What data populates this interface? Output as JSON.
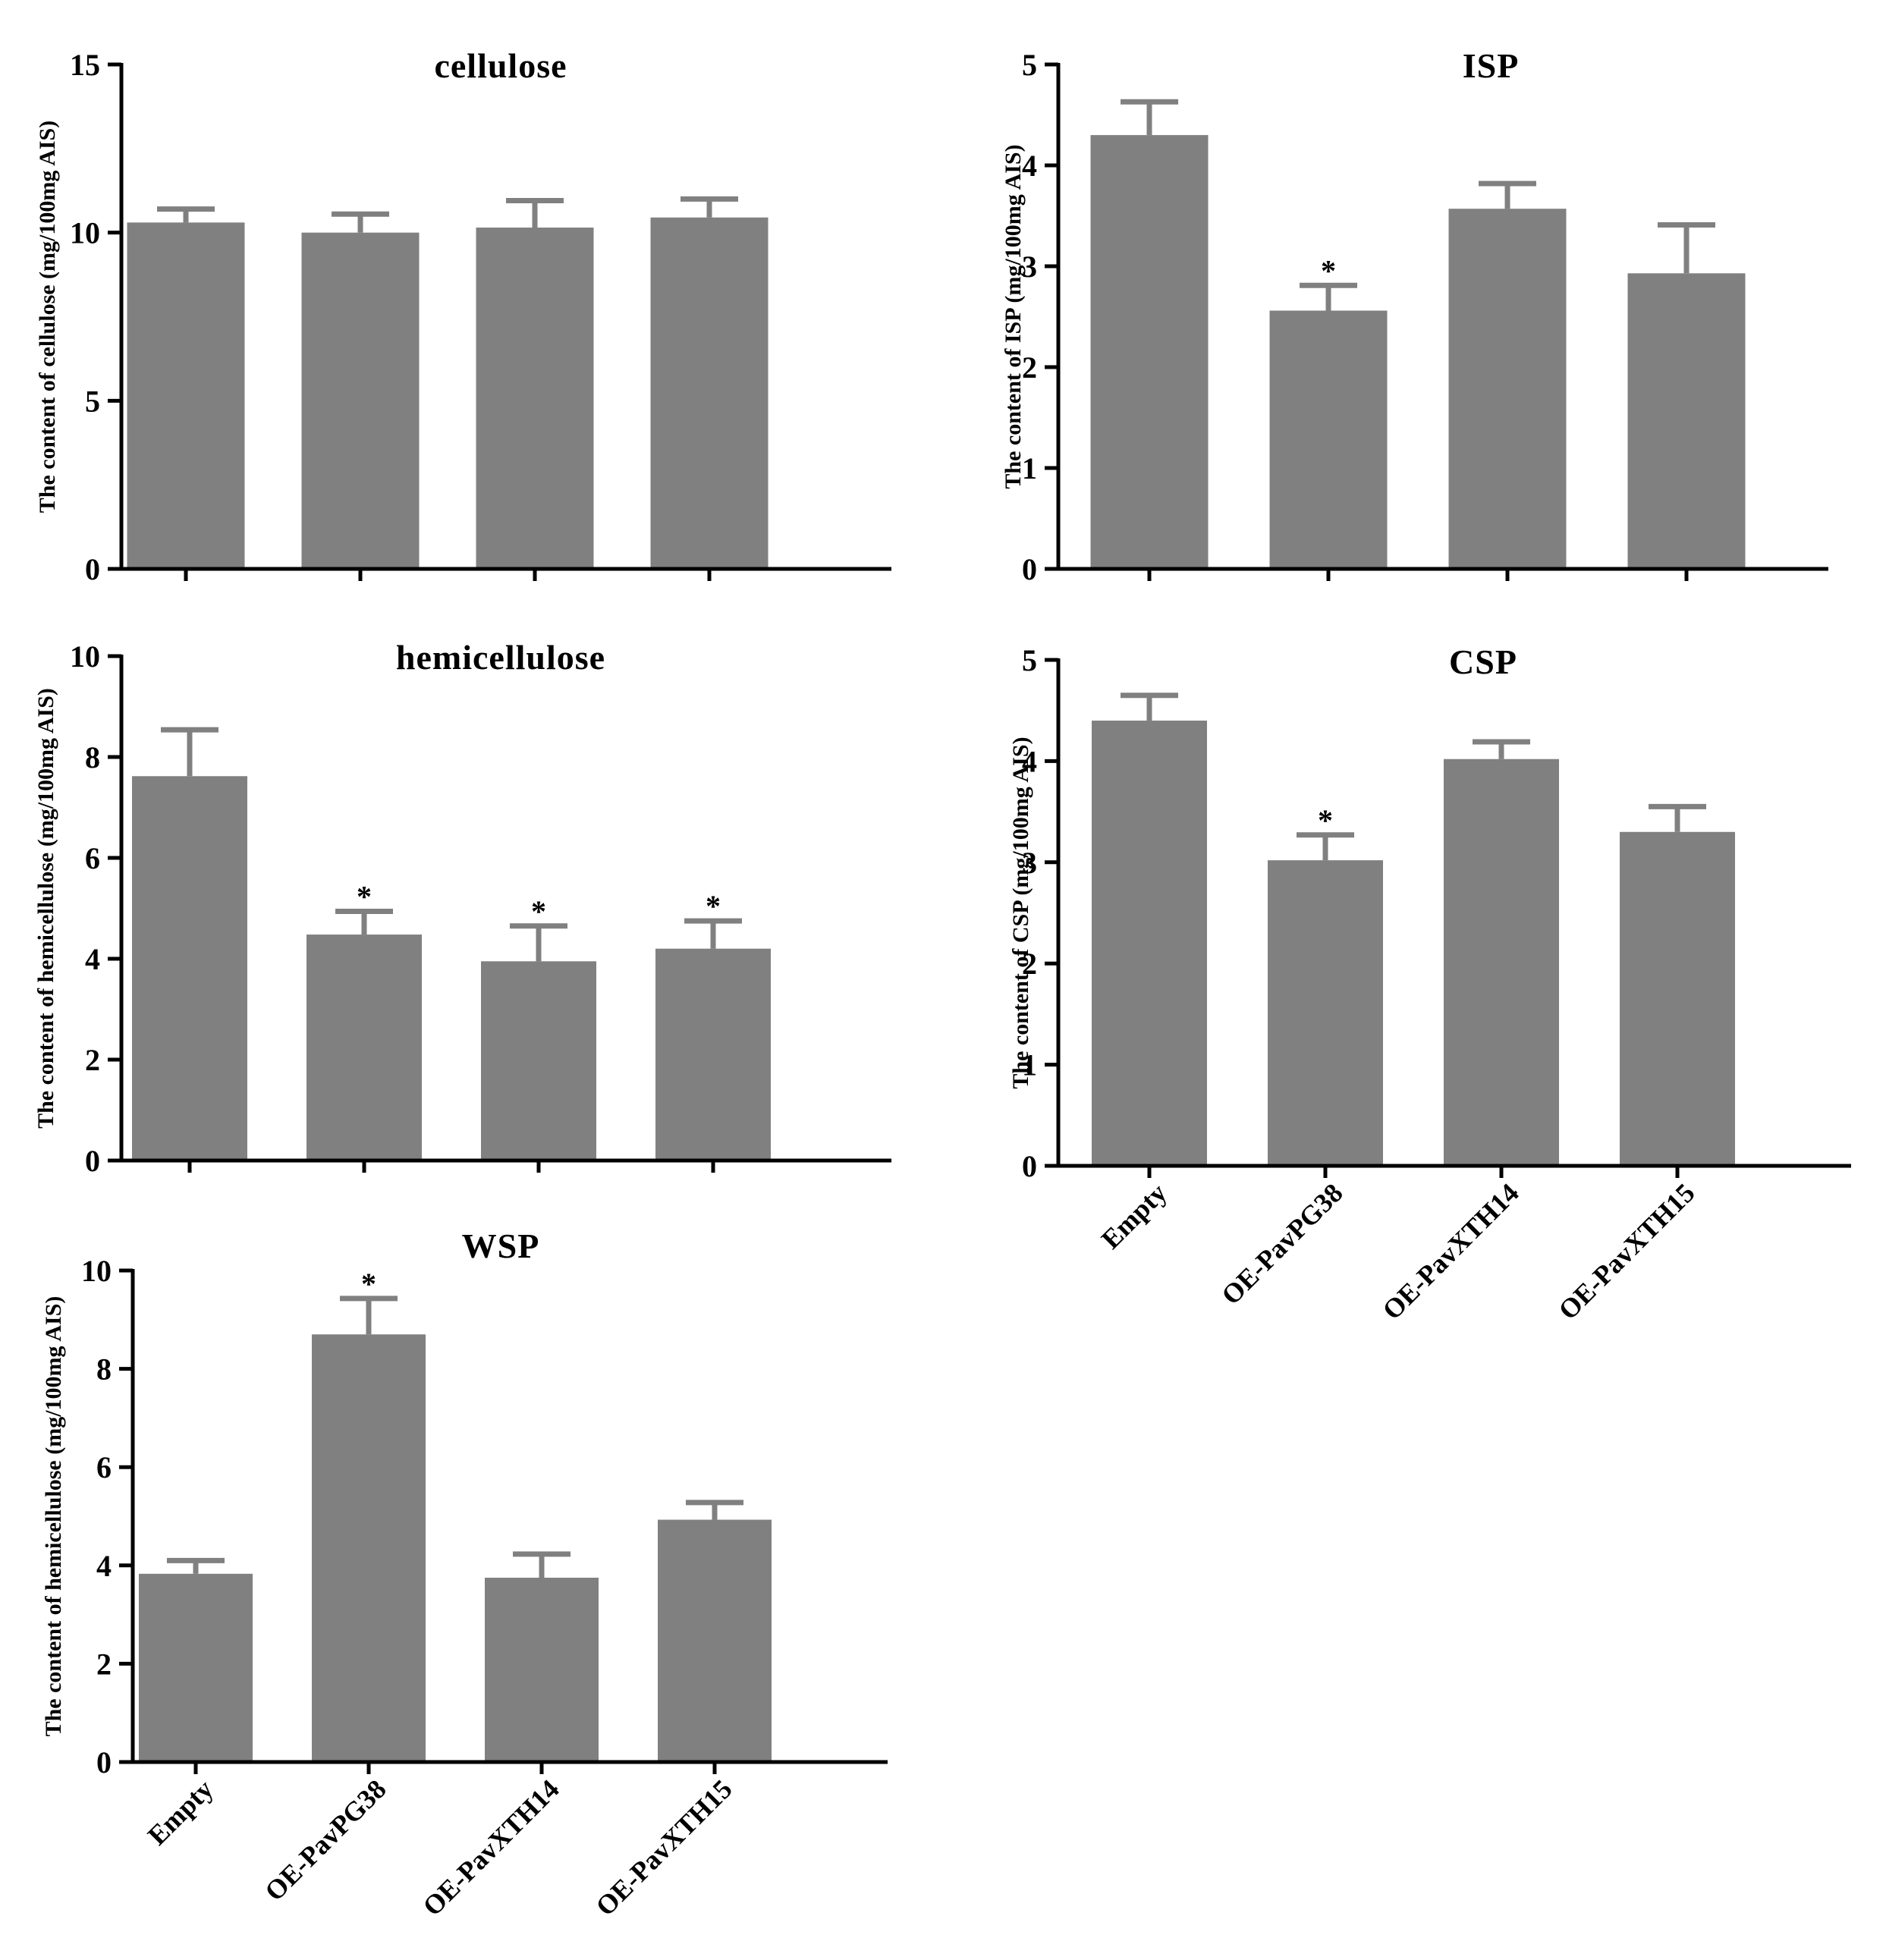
{
  "colors": {
    "bar": "#808080",
    "axis": "#000000",
    "text": "#000000",
    "background": "#ffffff"
  },
  "chart_data": [
    {
      "id": "cellulose",
      "type": "bar",
      "title": "cellulose",
      "ylabel": "The content of  cellulose (mg/100mg AIS)",
      "categories": [
        "Empty",
        "OE-PavPG38",
        "OE-PavXTH14",
        "OE-PavXTH15"
      ],
      "show_xticklabels": false,
      "ylim": [
        0,
        15
      ],
      "yticks": [
        0,
        5,
        10,
        15
      ],
      "values": [
        10.3,
        10.0,
        10.15,
        10.45
      ],
      "errors": [
        0.4,
        0.55,
        0.8,
        0.55
      ],
      "significance": [
        "",
        "",
        "",
        ""
      ]
    },
    {
      "id": "isp",
      "type": "bar",
      "title": "ISP",
      "ylabel": "The content of  ISP (mg/100mg AIS)",
      "categories": [
        "Empty",
        "OE-PavPG38",
        "OE-PavXTH14",
        "OE-PavXTH15"
      ],
      "show_xticklabels": false,
      "ylim": [
        0,
        5
      ],
      "yticks": [
        0,
        1,
        2,
        3,
        4,
        5
      ],
      "values": [
        4.3,
        2.56,
        3.57,
        2.93
      ],
      "errors": [
        0.33,
        0.25,
        0.25,
        0.48
      ],
      "significance": [
        "",
        "*",
        "",
        ""
      ]
    },
    {
      "id": "hemicellulose",
      "type": "bar",
      "title": "hemicellulose",
      "ylabel": "The content of  hemicellulose (mg/100mg AIS)",
      "categories": [
        "Empty",
        "OE-PavPG38",
        "OE-PavXTH14",
        "OE-PavXTH15"
      ],
      "show_xticklabels": false,
      "ylim": [
        0,
        10
      ],
      "yticks": [
        0,
        2,
        4,
        6,
        8,
        10
      ],
      "values": [
        7.62,
        4.48,
        3.95,
        4.2
      ],
      "errors": [
        0.92,
        0.46,
        0.7,
        0.55
      ],
      "significance": [
        "",
        "*",
        "*",
        "*"
      ]
    },
    {
      "id": "csp",
      "type": "bar",
      "title": "CSP",
      "ylabel": "The content of  CSP (mg/100mg AIS)",
      "categories": [
        "Empty",
        "OE-PavPG38",
        "OE-PavXTH14",
        "OE-PavXTH15"
      ],
      "show_xticklabels": true,
      "ylim": [
        0,
        5
      ],
      "yticks": [
        0,
        1,
        2,
        3,
        4,
        5
      ],
      "values": [
        4.4,
        3.02,
        4.02,
        3.3
      ],
      "errors": [
        0.25,
        0.25,
        0.17,
        0.25
      ],
      "significance": [
        "",
        "*",
        "",
        ""
      ]
    },
    {
      "id": "wsp",
      "type": "bar",
      "title": "WSP",
      "ylabel": "The content of  hemicellulose (mg/100mg AIS)",
      "categories": [
        "Empty",
        "OE-PavPG38",
        "OE-PavXTH14",
        "OE-PavXTH15"
      ],
      "show_xticklabels": true,
      "ylim": [
        0,
        10
      ],
      "yticks": [
        0,
        2,
        4,
        6,
        8,
        10
      ],
      "values": [
        3.83,
        8.7,
        3.75,
        4.93
      ],
      "errors": [
        0.27,
        0.73,
        0.48,
        0.35
      ],
      "significance": [
        "",
        "*",
        "",
        ""
      ]
    }
  ]
}
